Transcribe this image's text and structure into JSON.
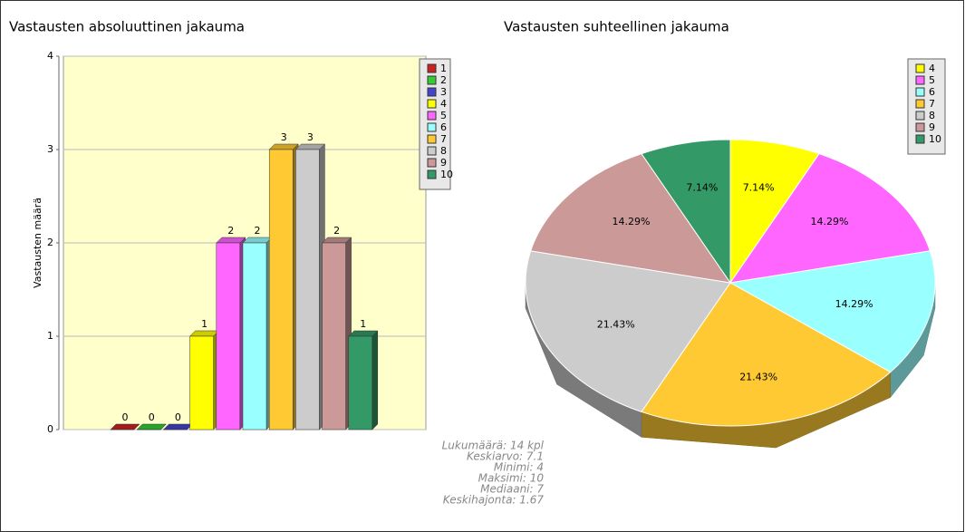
{
  "chart_data": [
    {
      "type": "bar",
      "title": "Vastausten absoluuttinen jakauma",
      "ylabel": "Vastausten määrä",
      "categories": [
        "1",
        "2",
        "3",
        "4",
        "5",
        "6",
        "7",
        "8",
        "9",
        "10"
      ],
      "values": [
        0,
        0,
        0,
        1,
        2,
        2,
        3,
        3,
        2,
        1
      ],
      "colors": [
        "#cc2222",
        "#33cc33",
        "#4444cc",
        "#ffff00",
        "#ff66ff",
        "#99ffff",
        "#ffc933",
        "#cccccc",
        "#cc9999",
        "#339966"
      ],
      "ylim": [
        0,
        4
      ],
      "yticks": [
        0,
        1,
        2,
        3,
        4
      ],
      "grid": true,
      "legend": "right"
    },
    {
      "type": "pie",
      "title": "Vastausten suhteellinen jakauma",
      "categories": [
        "4",
        "5",
        "6",
        "7",
        "8",
        "9",
        "10"
      ],
      "values": [
        7.14,
        14.29,
        14.29,
        21.43,
        21.43,
        14.29,
        7.14
      ],
      "value_labels": [
        "7.14%",
        "14.29%",
        "14.29%",
        "21.43%",
        "21.43%",
        "14.29%",
        "7.14%"
      ],
      "colors": [
        "#ffff00",
        "#ff66ff",
        "#99ffff",
        "#ffc933",
        "#cccccc",
        "#cc9999",
        "#339966"
      ],
      "legend": "upper right"
    }
  ],
  "stats": [
    "Lukumäärä: 14 kpl",
    "Keskiarvo: 7.1",
    "Minimi: 4",
    "Maksimi: 10",
    "Mediaani: 7",
    "Keskihajonta: 1.67"
  ]
}
